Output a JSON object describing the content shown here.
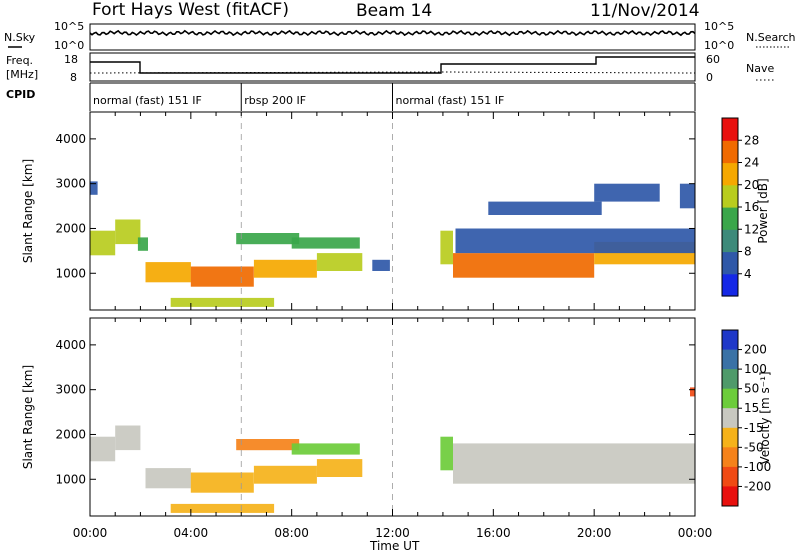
{
  "header": {
    "station": "Fort Hays West (fitACF)",
    "beam": "Beam 14",
    "date": "11/Nov/2014"
  },
  "top_panels": {
    "nsky_label": "N.Sky",
    "nsky_ticks": [
      "10^5",
      "10^0"
    ],
    "nsearch_label": "N.Search",
    "nsearch_ticks": [
      "10^5",
      "10^0"
    ],
    "freq_label": "Freq.",
    "freq_unit": "[MHz]",
    "freq_ticks": [
      "18",
      "8"
    ],
    "nave_label": "Nave",
    "nave_ticks": [
      "60",
      "0"
    ],
    "cpid_label": "CPID",
    "cpid_segments": [
      {
        "label": "normal (fast) 151 IF",
        "start_hour": 0,
        "end_hour": 6
      },
      {
        "label": "rbsp 200 IF",
        "start_hour": 6,
        "end_hour": 12
      },
      {
        "label": "normal (fast) 151 IF",
        "start_hour": 12,
        "end_hour": 24
      }
    ]
  },
  "chart_data": [
    {
      "type": "heatmap",
      "name": "power",
      "xlabel": "Time UT",
      "ylabel": "Slant Range [km]",
      "x_range_hours": [
        0,
        24
      ],
      "x_tick_labels": [
        "00:00",
        "04:00",
        "08:00",
        "12:00",
        "16:00",
        "20:00",
        "00:00"
      ],
      "ylim": [
        180,
        4600
      ],
      "y_tick_values": [
        1000,
        2000,
        3000,
        4000
      ],
      "colorbar_label": "Power [dB]",
      "colorbar_ticks": [
        "4",
        "8",
        "12",
        "16",
        "20",
        "24",
        "28"
      ],
      "colorbar_range": [
        0,
        30
      ],
      "colorbar_colors": [
        "#1528e6",
        "#2f58a8",
        "#3d8a7a",
        "#3aa64a",
        "#b8cc1e",
        "#f5a800",
        "#f06a00",
        "#e8100e"
      ],
      "features": [
        {
          "start_hour": 0.0,
          "end_hour": 1.0,
          "range_start_km": 1400,
          "range_end_km": 1950,
          "intensity_db": 18
        },
        {
          "start_hour": 1.0,
          "end_hour": 2.0,
          "range_start_km": 1650,
          "range_end_km": 2200,
          "intensity_db": 16
        },
        {
          "start_hour": 1.9,
          "end_hour": 2.3,
          "range_start_km": 1500,
          "range_end_km": 1800,
          "intensity_db": 12
        },
        {
          "start_hour": 2.2,
          "end_hour": 4.0,
          "range_start_km": 800,
          "range_end_km": 1250,
          "intensity_db": 22
        },
        {
          "start_hour": 4.0,
          "end_hour": 6.5,
          "range_start_km": 700,
          "range_end_km": 1150,
          "intensity_db": 24
        },
        {
          "start_hour": 6.5,
          "end_hour": 9.0,
          "range_start_km": 900,
          "range_end_km": 1300,
          "intensity_db": 22
        },
        {
          "start_hour": 9.0,
          "end_hour": 10.8,
          "range_start_km": 1050,
          "range_end_km": 1450,
          "intensity_db": 18
        },
        {
          "start_hour": 5.8,
          "end_hour": 8.3,
          "range_start_km": 1650,
          "range_end_km": 1900,
          "intensity_db": 12
        },
        {
          "start_hour": 8.0,
          "end_hour": 10.7,
          "range_start_km": 1550,
          "range_end_km": 1800,
          "intensity_db": 14
        },
        {
          "start_hour": 11.2,
          "end_hour": 11.9,
          "range_start_km": 1050,
          "range_end_km": 1300,
          "intensity_db": 6
        },
        {
          "start_hour": 3.2,
          "end_hour": 7.3,
          "range_start_km": 250,
          "range_end_km": 450,
          "intensity_db": 16
        },
        {
          "start_hour": 13.9,
          "end_hour": 14.4,
          "range_start_km": 1200,
          "range_end_km": 1950,
          "intensity_db": 16
        },
        {
          "start_hour": 14.4,
          "end_hour": 20.0,
          "range_start_km": 900,
          "range_end_km": 1450,
          "intensity_db": 24
        },
        {
          "start_hour": 20.0,
          "end_hour": 24.0,
          "range_start_km": 1200,
          "range_end_km": 1700,
          "intensity_db": 22
        },
        {
          "start_hour": 14.5,
          "end_hour": 24.0,
          "range_start_km": 1450,
          "range_end_km": 2000,
          "intensity_db": 6
        },
        {
          "start_hour": 15.8,
          "end_hour": 20.3,
          "range_start_km": 2300,
          "range_end_km": 2600,
          "intensity_db": 4
        },
        {
          "start_hour": 20.0,
          "end_hour": 22.6,
          "range_start_km": 2600,
          "range_end_km": 3000,
          "intensity_db": 4
        },
        {
          "start_hour": 23.4,
          "end_hour": 24.0,
          "range_start_km": 2450,
          "range_end_km": 3000,
          "intensity_db": 4
        },
        {
          "start_hour": 0.0,
          "end_hour": 0.3,
          "range_start_km": 2750,
          "range_end_km": 3050,
          "intensity_db": 4
        }
      ]
    },
    {
      "type": "heatmap",
      "name": "velocity",
      "xlabel": "Time UT",
      "ylabel": "Slant Range [km]",
      "x_range_hours": [
        0,
        24
      ],
      "x_tick_labels": [
        "00:00",
        "04:00",
        "08:00",
        "12:00",
        "16:00",
        "20:00",
        "00:00"
      ],
      "ylim": [
        180,
        4600
      ],
      "y_tick_values": [
        1000,
        2000,
        3000,
        4000
      ],
      "colorbar_label": "Velocity [m s⁻¹]",
      "colorbar_ticks": [
        "200",
        "100",
        "50",
        "15",
        "-15",
        "-50",
        "-100",
        "-200"
      ],
      "colorbar_colors": [
        "#1f38c8",
        "#3a72a6",
        "#4f9a6a",
        "#6ccc3a",
        "#c8c8c0",
        "#f5b21a",
        "#f5821a",
        "#f04a14",
        "#e8100e"
      ],
      "features": [
        {
          "start_hour": 0.0,
          "end_hour": 1.0,
          "range_start_km": 1400,
          "range_end_km": 1950,
          "velocity_ms": 0
        },
        {
          "start_hour": 1.0,
          "end_hour": 2.0,
          "range_start_km": 1650,
          "range_end_km": 2200,
          "velocity_ms": 0
        },
        {
          "start_hour": 2.2,
          "end_hour": 4.0,
          "range_start_km": 800,
          "range_end_km": 1250,
          "velocity_ms": 0
        },
        {
          "start_hour": 4.0,
          "end_hour": 6.5,
          "range_start_km": 700,
          "range_end_km": 1150,
          "velocity_ms": -40
        },
        {
          "start_hour": 6.5,
          "end_hour": 9.0,
          "range_start_km": 900,
          "range_end_km": 1300,
          "velocity_ms": -40
        },
        {
          "start_hour": 9.0,
          "end_hour": 10.8,
          "range_start_km": 1050,
          "range_end_km": 1450,
          "velocity_ms": -20
        },
        {
          "start_hour": 5.8,
          "end_hour": 8.3,
          "range_start_km": 1650,
          "range_end_km": 1900,
          "velocity_ms": -80
        },
        {
          "start_hour": 8.0,
          "end_hour": 10.7,
          "range_start_km": 1550,
          "range_end_km": 1800,
          "velocity_ms": 20
        },
        {
          "start_hour": 3.2,
          "end_hour": 7.3,
          "range_start_km": 250,
          "range_end_km": 450,
          "velocity_ms": -40
        },
        {
          "start_hour": 13.9,
          "end_hour": 14.4,
          "range_start_km": 1200,
          "range_end_km": 1950,
          "velocity_ms": 30
        },
        {
          "start_hour": 14.4,
          "end_hour": 24.0,
          "range_start_km": 900,
          "range_end_km": 1800,
          "velocity_ms": 0
        },
        {
          "start_hour": 23.8,
          "end_hour": 24.0,
          "range_start_km": 2850,
          "range_end_km": 3050,
          "velocity_ms": -150
        }
      ]
    }
  ]
}
